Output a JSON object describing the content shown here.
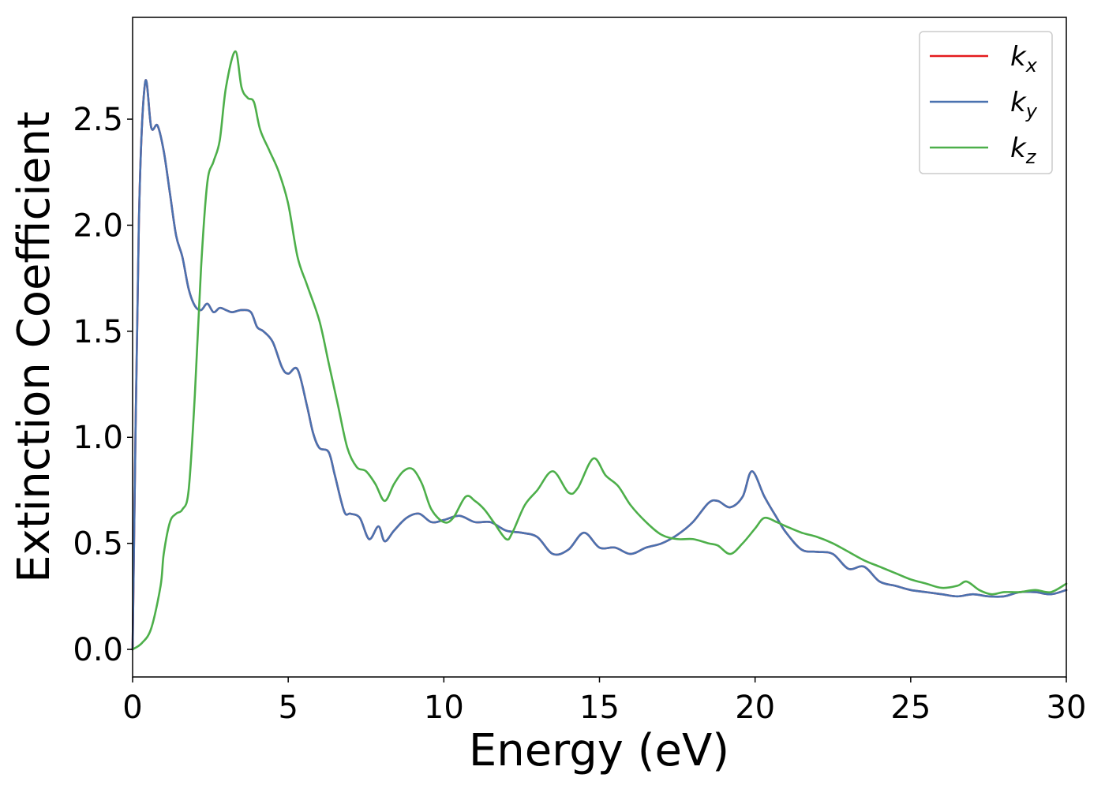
{
  "chart_data": {
    "type": "line",
    "xlabel": "Energy (eV)",
    "ylabel": "Extinction Coefficient",
    "xlim": [
      0,
      30
    ],
    "ylim": [
      -0.13,
      2.98
    ],
    "xticks": [
      0,
      5,
      10,
      15,
      20,
      25,
      30
    ],
    "xtick_labels": [
      "0",
      "5",
      "10",
      "15",
      "20",
      "25",
      "30"
    ],
    "yticks": [
      0.0,
      0.5,
      1.0,
      1.5,
      2.0,
      2.5
    ],
    "ytick_labels": [
      "0.0",
      "0.5",
      "1.0",
      "1.5",
      "2.0",
      "2.5"
    ],
    "grid": false,
    "legend_position": "top-right",
    "series": [
      {
        "name": "k",
        "subscript": "x",
        "color": "#e41a1c",
        "x": [
          0,
          0.2,
          0.4,
          0.6,
          0.8,
          1.0,
          1.2,
          1.4,
          1.6,
          1.8,
          2.0,
          2.2,
          2.4,
          2.6,
          2.8,
          3.0,
          3.2,
          3.5,
          3.8,
          4.0,
          4.2,
          4.5,
          4.8,
          5.0,
          5.3,
          5.6,
          5.8,
          6.0,
          6.3,
          6.5,
          6.8,
          7.0,
          7.3,
          7.6,
          7.9,
          8.1,
          8.4,
          8.8,
          9.2,
          9.6,
          10.0,
          10.5,
          11.0,
          11.5,
          12.0,
          12.5,
          13.0,
          13.5,
          14.0,
          14.5,
          15.0,
          15.5,
          16.0,
          16.5,
          17.0,
          17.5,
          18.0,
          18.5,
          18.8,
          19.2,
          19.6,
          19.9,
          20.3,
          20.7,
          21.0,
          21.5,
          22.0,
          22.5,
          23.0,
          23.5,
          24.0,
          24.5,
          25.0,
          25.5,
          26.0,
          26.5,
          27.0,
          27.5,
          28.0,
          28.5,
          29.0,
          29.5,
          30.0
        ],
        "y": [
          0.0,
          2.0,
          2.67,
          2.46,
          2.47,
          2.35,
          2.15,
          1.95,
          1.85,
          1.7,
          1.62,
          1.6,
          1.63,
          1.59,
          1.61,
          1.6,
          1.59,
          1.6,
          1.59,
          1.52,
          1.5,
          1.45,
          1.33,
          1.3,
          1.32,
          1.15,
          1.02,
          0.95,
          0.93,
          0.82,
          0.65,
          0.64,
          0.62,
          0.52,
          0.58,
          0.51,
          0.56,
          0.62,
          0.64,
          0.6,
          0.61,
          0.63,
          0.6,
          0.6,
          0.56,
          0.55,
          0.53,
          0.45,
          0.47,
          0.55,
          0.48,
          0.48,
          0.45,
          0.48,
          0.5,
          0.54,
          0.6,
          0.69,
          0.7,
          0.67,
          0.72,
          0.84,
          0.72,
          0.62,
          0.55,
          0.47,
          0.46,
          0.45,
          0.38,
          0.39,
          0.32,
          0.3,
          0.28,
          0.27,
          0.26,
          0.25,
          0.26,
          0.25,
          0.25,
          0.27,
          0.27,
          0.26,
          0.28
        ]
      },
      {
        "name": "k",
        "subscript": "y",
        "color": "#4a72b0",
        "x": [
          0,
          0.2,
          0.4,
          0.6,
          0.8,
          1.0,
          1.2,
          1.4,
          1.6,
          1.8,
          2.0,
          2.2,
          2.4,
          2.6,
          2.8,
          3.0,
          3.2,
          3.5,
          3.8,
          4.0,
          4.2,
          4.5,
          4.8,
          5.0,
          5.3,
          5.6,
          5.8,
          6.0,
          6.3,
          6.5,
          6.8,
          7.0,
          7.3,
          7.6,
          7.9,
          8.1,
          8.4,
          8.8,
          9.2,
          9.6,
          10.0,
          10.5,
          11.0,
          11.5,
          12.0,
          12.5,
          13.0,
          13.5,
          14.0,
          14.5,
          15.0,
          15.5,
          16.0,
          16.5,
          17.0,
          17.5,
          18.0,
          18.5,
          18.8,
          19.2,
          19.6,
          19.9,
          20.3,
          20.7,
          21.0,
          21.5,
          22.0,
          22.5,
          23.0,
          23.5,
          24.0,
          24.5,
          25.0,
          25.5,
          26.0,
          26.5,
          27.0,
          27.5,
          28.0,
          28.5,
          29.0,
          29.5,
          30.0
        ],
        "y": [
          0.0,
          2.0,
          2.67,
          2.46,
          2.47,
          2.35,
          2.15,
          1.95,
          1.85,
          1.7,
          1.62,
          1.6,
          1.63,
          1.59,
          1.61,
          1.6,
          1.59,
          1.6,
          1.59,
          1.52,
          1.5,
          1.45,
          1.33,
          1.3,
          1.32,
          1.15,
          1.02,
          0.95,
          0.93,
          0.82,
          0.65,
          0.64,
          0.62,
          0.52,
          0.58,
          0.51,
          0.56,
          0.62,
          0.64,
          0.6,
          0.61,
          0.63,
          0.6,
          0.6,
          0.56,
          0.55,
          0.53,
          0.45,
          0.47,
          0.55,
          0.48,
          0.48,
          0.45,
          0.48,
          0.5,
          0.54,
          0.6,
          0.69,
          0.7,
          0.67,
          0.72,
          0.84,
          0.72,
          0.62,
          0.55,
          0.47,
          0.46,
          0.45,
          0.38,
          0.39,
          0.32,
          0.3,
          0.28,
          0.27,
          0.26,
          0.25,
          0.26,
          0.25,
          0.25,
          0.27,
          0.27,
          0.26,
          0.28
        ]
      },
      {
        "name": "k",
        "subscript": "z",
        "color": "#4daf4a",
        "x": [
          0,
          0.3,
          0.6,
          0.9,
          1.0,
          1.2,
          1.4,
          1.6,
          1.8,
          2.0,
          2.2,
          2.4,
          2.6,
          2.8,
          3.0,
          3.3,
          3.5,
          3.7,
          3.9,
          4.1,
          4.4,
          4.7,
          5.0,
          5.3,
          5.6,
          6.0,
          6.3,
          6.6,
          6.9,
          7.2,
          7.5,
          7.8,
          8.1,
          8.4,
          8.7,
          9.0,
          9.3,
          9.6,
          10.0,
          10.3,
          10.7,
          11.0,
          11.3,
          11.6,
          12.0,
          12.2,
          12.6,
          13.0,
          13.5,
          14.0,
          14.3,
          14.8,
          15.2,
          15.6,
          16.0,
          16.5,
          17.0,
          17.5,
          18.0,
          18.5,
          18.8,
          19.2,
          19.6,
          20.0,
          20.3,
          20.7,
          21.0,
          21.5,
          22.0,
          22.5,
          23.0,
          23.5,
          24.0,
          24.5,
          25.0,
          25.5,
          26.0,
          26.5,
          26.8,
          27.2,
          27.6,
          28.0,
          28.5,
          29.0,
          29.5,
          30.0
        ],
        "y": [
          0.0,
          0.03,
          0.1,
          0.3,
          0.45,
          0.6,
          0.64,
          0.66,
          0.75,
          1.2,
          1.8,
          2.2,
          2.3,
          2.4,
          2.65,
          2.82,
          2.65,
          2.6,
          2.58,
          2.45,
          2.35,
          2.25,
          2.1,
          1.85,
          1.72,
          1.55,
          1.35,
          1.15,
          0.95,
          0.86,
          0.84,
          0.78,
          0.7,
          0.78,
          0.84,
          0.85,
          0.78,
          0.66,
          0.6,
          0.62,
          0.72,
          0.7,
          0.66,
          0.6,
          0.52,
          0.55,
          0.68,
          0.75,
          0.84,
          0.74,
          0.76,
          0.9,
          0.82,
          0.77,
          0.68,
          0.6,
          0.54,
          0.52,
          0.52,
          0.5,
          0.49,
          0.45,
          0.5,
          0.57,
          0.62,
          0.6,
          0.58,
          0.55,
          0.53,
          0.5,
          0.46,
          0.42,
          0.39,
          0.36,
          0.33,
          0.31,
          0.29,
          0.3,
          0.32,
          0.28,
          0.26,
          0.27,
          0.27,
          0.28,
          0.27,
          0.31
        ]
      }
    ]
  }
}
